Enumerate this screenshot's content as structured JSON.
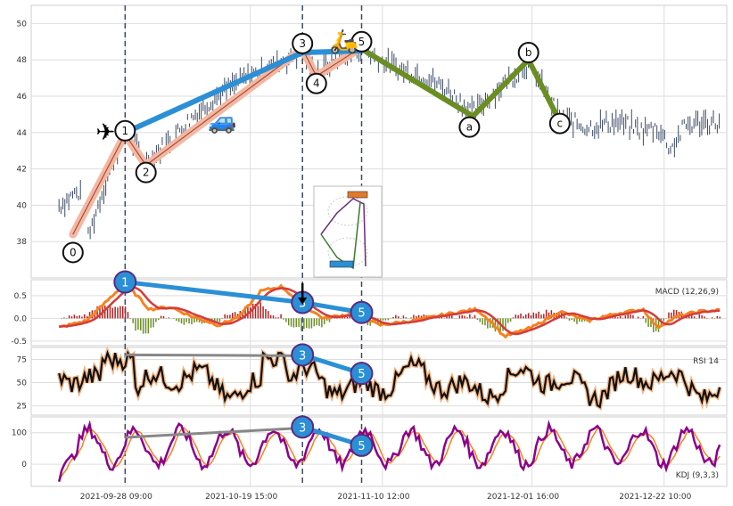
{
  "chart_data": {
    "type": "line",
    "x_tick_labels": [
      "2021-09-28 09:00",
      "2021-10-19 15:00",
      "2021-11-10 12:00",
      "2021-12-01 16:00",
      "2021-12-22 10:00"
    ],
    "price_panel": {
      "ylim": [
        36,
        51
      ],
      "y_ticks": [
        38,
        40,
        42,
        44,
        46,
        48,
        50
      ],
      "grid": true,
      "wave_labels": [
        {
          "label": "0",
          "t": 0.06,
          "price": 37.4
        },
        {
          "label": "1",
          "t": 0.135,
          "price": 44.1
        },
        {
          "label": "2",
          "t": 0.165,
          "price": 41.8
        },
        {
          "label": "3",
          "t": 0.39,
          "price": 48.9
        },
        {
          "label": "4",
          "t": 0.41,
          "price": 46.7
        },
        {
          "label": "5",
          "t": 0.475,
          "price": 49.0
        },
        {
          "label": "a",
          "t": 0.63,
          "price": 44.3
        },
        {
          "label": "b",
          "t": 0.715,
          "price": 48.4
        },
        {
          "label": "c",
          "t": 0.76,
          "price": 44.5
        }
      ],
      "impulse_path": [
        [
          0.06,
          38.4
        ],
        [
          0.135,
          43.9
        ],
        [
          0.165,
          42.2
        ],
        [
          0.39,
          48.6
        ],
        [
          0.41,
          47.1
        ],
        [
          0.475,
          48.7
        ]
      ],
      "corrective_path": [
        [
          0.475,
          48.6
        ],
        [
          0.635,
          44.9
        ],
        [
          0.715,
          48.0
        ],
        [
          0.76,
          44.6
        ]
      ],
      "trend_line": [
        [
          0.135,
          44.0
        ],
        [
          0.39,
          48.4
        ],
        [
          0.475,
          48.5
        ]
      ],
      "vertical_markers_t": [
        0.135,
        0.39,
        0.475
      ]
    },
    "macd_panel": {
      "label": "MACD (12,26,9)",
      "ylim": [
        -0.6,
        0.85
      ],
      "y_ticks": [
        -0.5,
        0.0,
        0.5
      ],
      "divergence_points": [
        {
          "label": "1",
          "t": 0.135,
          "value": 0.8
        },
        {
          "label": "3",
          "t": 0.39,
          "value": 0.35
        },
        {
          "label": "5",
          "t": 0.475,
          "value": 0.13
        }
      ]
    },
    "rsi_panel": {
      "label": "RSI 14",
      "ylim": [
        15,
        88
      ],
      "y_ticks": [
        25,
        50,
        75
      ],
      "divergence_points": [
        {
          "label": "3",
          "t": 0.39,
          "value": 80
        },
        {
          "label": "5",
          "t": 0.475,
          "value": 60
        }
      ],
      "gray_line": [
        [
          0.135,
          80
        ],
        [
          0.39,
          79
        ]
      ]
    },
    "kdj_panel": {
      "label": "KDJ (9,3,3)",
      "ylim": [
        -70,
        150
      ],
      "y_ticks": [
        0,
        100
      ],
      "divergence_points": [
        {
          "label": "3",
          "t": 0.39,
          "value": 118
        },
        {
          "label": "5",
          "t": 0.475,
          "value": 60
        }
      ],
      "gray_line": [
        [
          0.135,
          85
        ],
        [
          0.39,
          115
        ]
      ]
    },
    "colors": {
      "price": "#3b4a66",
      "impulse_fill": "#f4b7a2",
      "impulse_line": "#a3523a",
      "trend": "#2b8fd6",
      "corrective": "#6b8e23",
      "marker_line": "#3b4a66",
      "macd_line": "#f5821f",
      "signal_line": "#d63b3b",
      "hist_pos": "#b22222",
      "hist_neg": "#6b8e23",
      "rsi_line": "#111111",
      "rsi_halo": "#f4b483",
      "k_line": "#f5821f",
      "d_line": "#8b008b",
      "gray": "#888888",
      "circle_fill": "#2b8fd6",
      "circle_stroke": "#5a2a82"
    },
    "icons": [
      "airplane-icon",
      "car-icon",
      "scooter-icon"
    ]
  }
}
